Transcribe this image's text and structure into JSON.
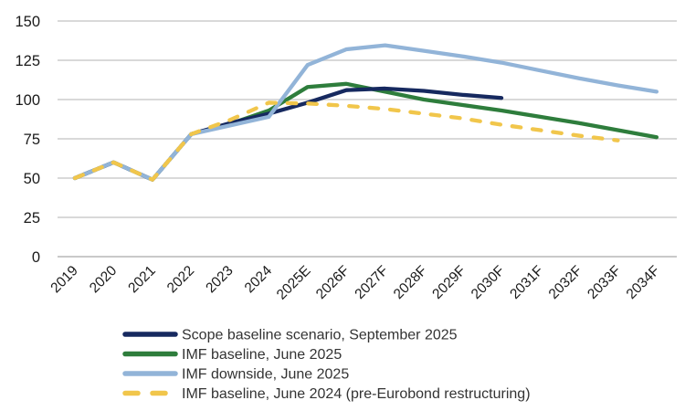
{
  "chart_data": {
    "type": "line",
    "title": "",
    "xlabel": "",
    "ylabel": "",
    "ylim": [
      0,
      150
    ],
    "yticks": [
      0,
      25,
      50,
      75,
      100,
      125,
      150
    ],
    "grid": "horizontal",
    "legend_position": "bottom-left",
    "categories": [
      "2019",
      "2020",
      "2021",
      "2022",
      "2023",
      "2024",
      "2025E",
      "2026F",
      "2027F",
      "2028F",
      "2029F",
      "2030F",
      "2031F",
      "2032F",
      "2033F",
      "2034F"
    ],
    "series": [
      {
        "name": "IMF baseline, June 2025",
        "color": "#2e7d3c",
        "style": "solid",
        "values": [
          50,
          60,
          49,
          78,
          84.5,
          93,
          108,
          110,
          105,
          100,
          96.5,
          93,
          89,
          85,
          80.5,
          76
        ]
      },
      {
        "name": "Scope baseline scenario, September 2025",
        "color": "#16295f",
        "style": "solid",
        "values": [
          50,
          60,
          49,
          78,
          85,
          91,
          98,
          106,
          107,
          105.5,
          103,
          101,
          null,
          null,
          null,
          null
        ]
      },
      {
        "name": "IMF downside, June 2025",
        "color": "#92b4d8",
        "style": "solid",
        "values": [
          50,
          60,
          49,
          78,
          83.5,
          89,
          122,
          132,
          134.5,
          131,
          127.5,
          123.5,
          118.5,
          113.5,
          109,
          105
        ]
      },
      {
        "name": "IMF baseline, June 2024 (pre-Eurobond restructuring)",
        "color": "#f1c64b",
        "style": "dashed",
        "values": [
          50,
          60,
          49,
          78,
          87,
          98,
          97.5,
          96,
          94,
          91,
          88,
          84,
          80.5,
          77,
          74,
          null
        ]
      }
    ],
    "legend_order": [
      "Scope baseline scenario, September 2025",
      "IMF baseline, June 2025",
      "IMF downside, June 2025",
      "IMF baseline, June 2024 (pre-Eurobond restructuring)"
    ],
    "colors": {
      "gridline": "#d9d9d9",
      "axis_line": "#c9c9c9",
      "tick_text": "#1a1a1a",
      "legend_text": "#333333",
      "background": "#ffffff"
    }
  }
}
